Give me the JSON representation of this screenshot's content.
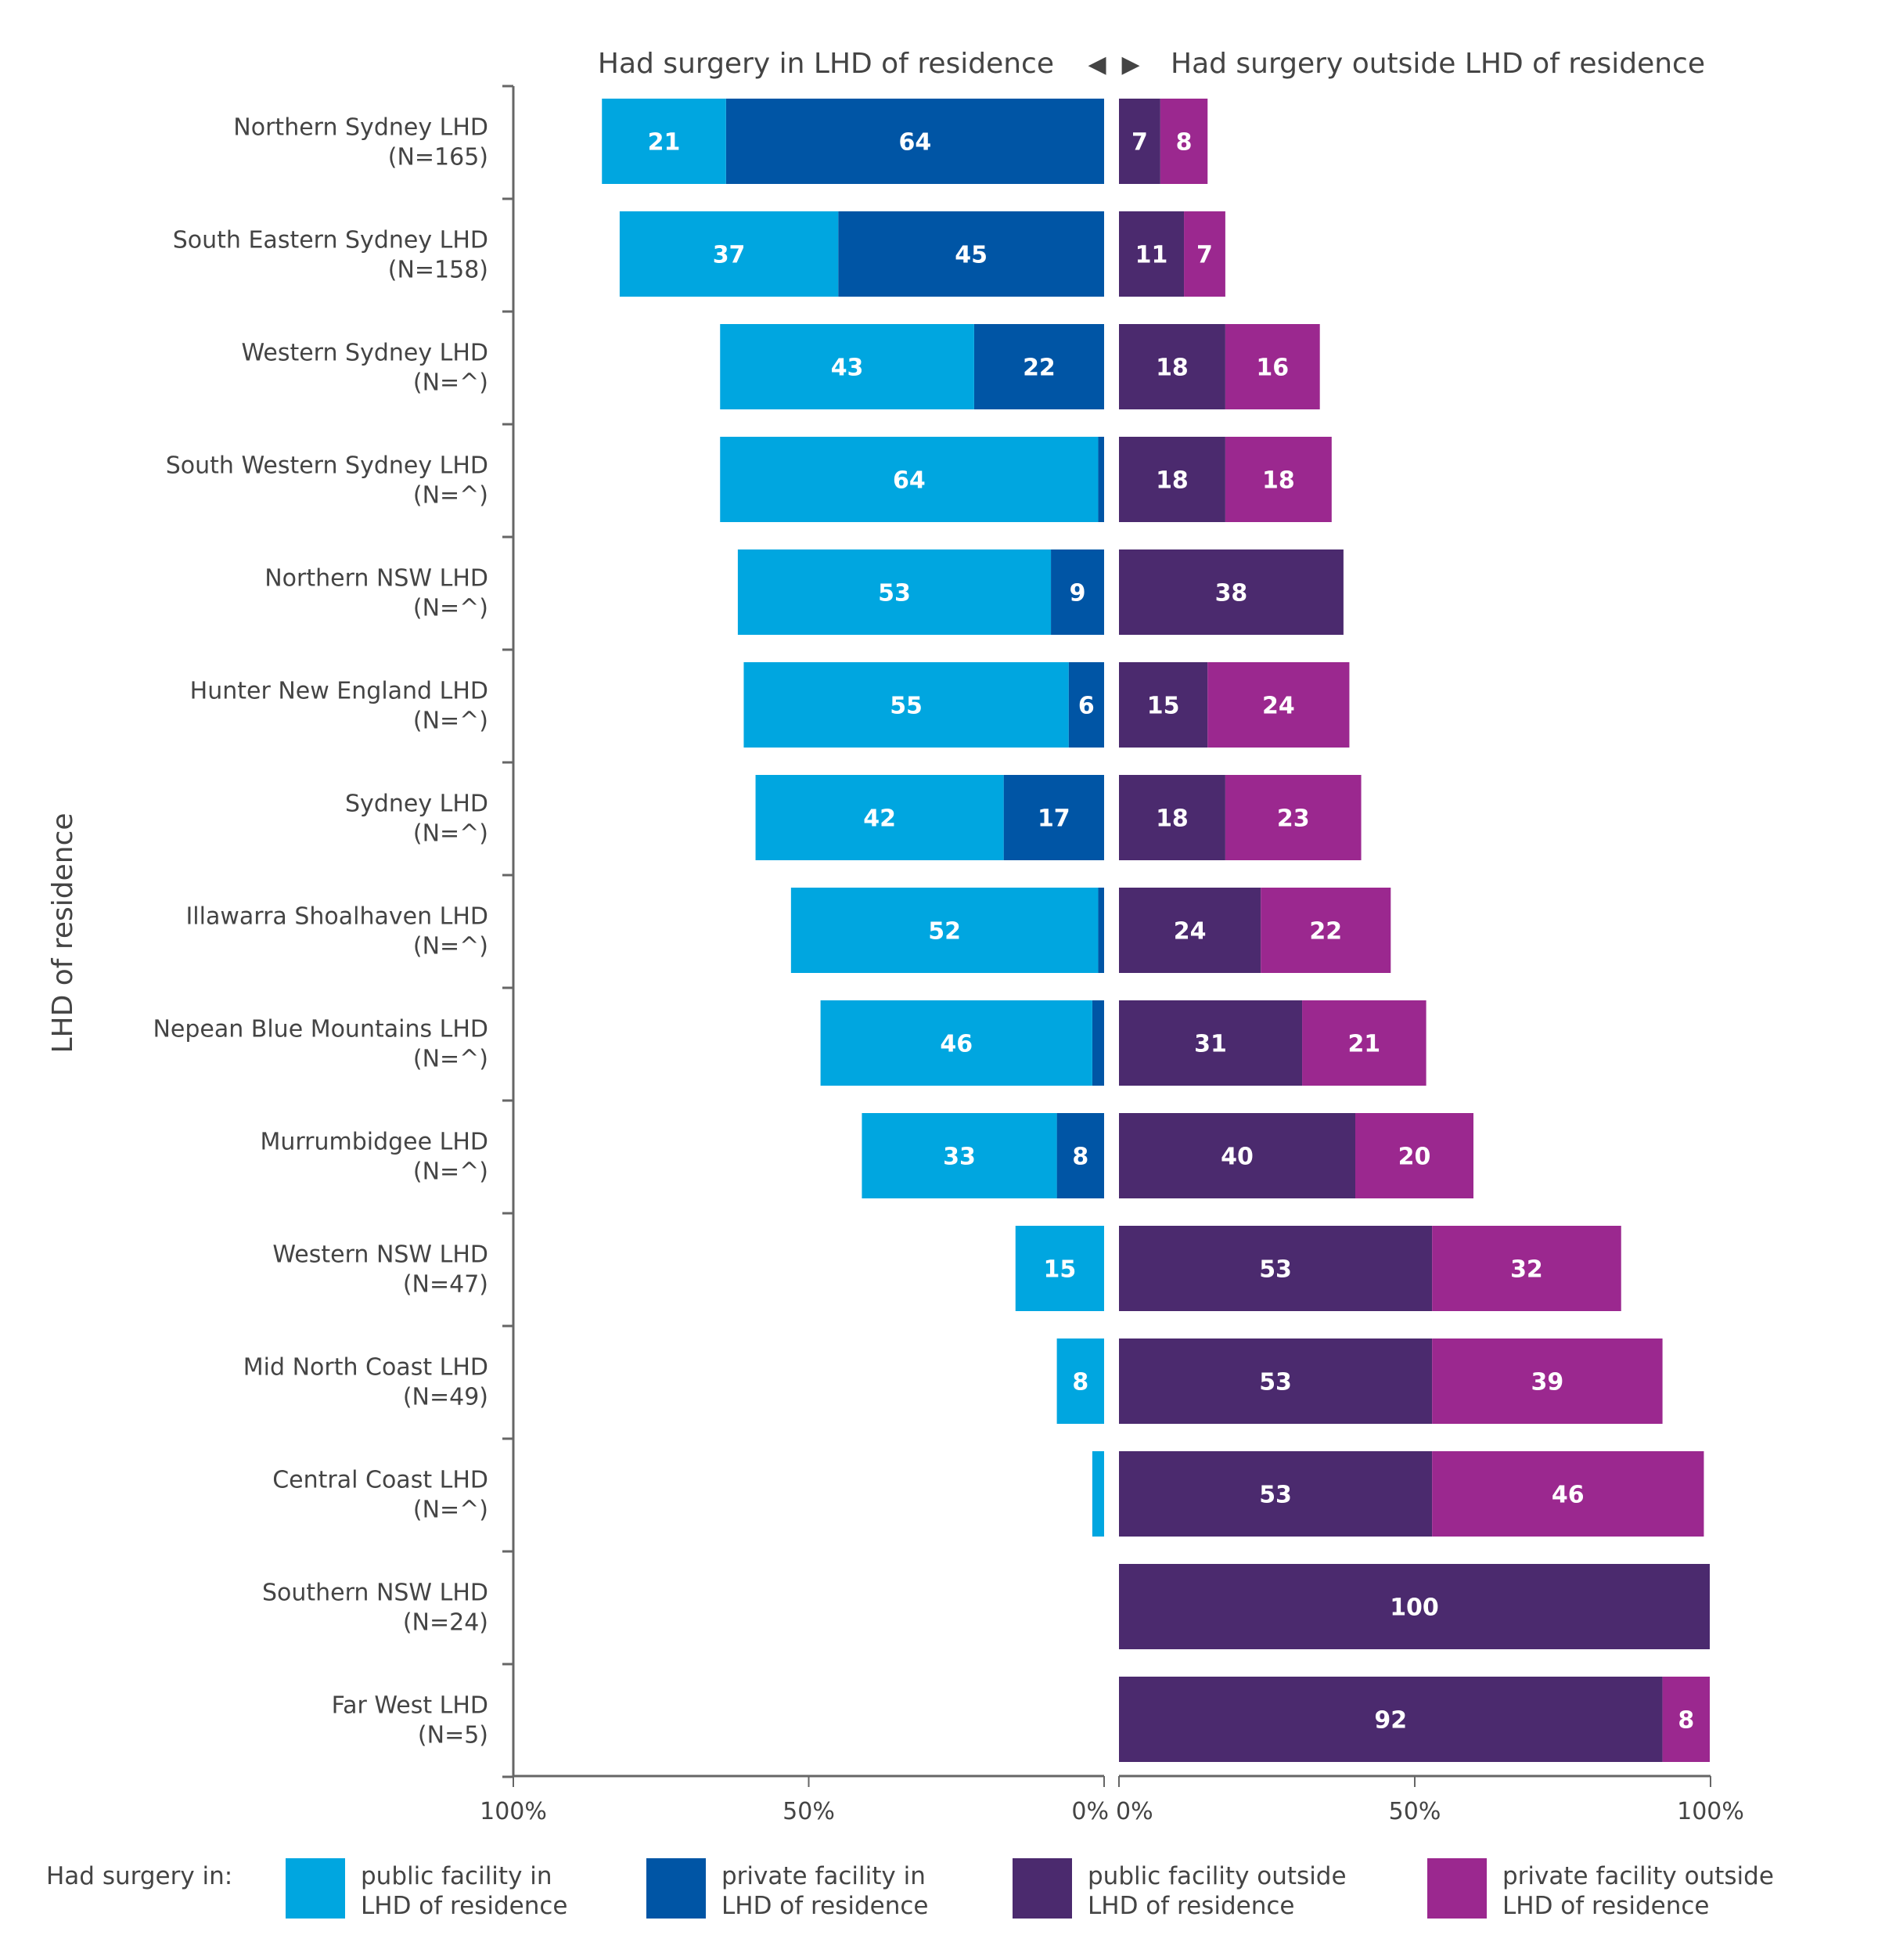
{
  "chart_data": {
    "type": "bar",
    "orientation": "horizontal",
    "layout": "diverging-stacked",
    "header_left": "Had surgery in LHD of residence",
    "header_right": "Had surgery outside LHD of residence",
    "arrow_left": "◀",
    "arrow_right": "▶",
    "ylabel": "LHD of residence",
    "xlim_left": [
      100,
      0
    ],
    "xlim_right": [
      0,
      100
    ],
    "x_tick_labels_left": [
      "100%",
      "50%",
      "0%"
    ],
    "x_tick_labels_right": [
      "0%",
      "50%",
      "100%"
    ],
    "grid": false,
    "categories": [
      {
        "name": "Northern Sydney LHD",
        "n": "(N=165)"
      },
      {
        "name": "South Eastern Sydney LHD",
        "n": "(N=158)"
      },
      {
        "name": "Western Sydney LHD",
        "n": "(N=^)"
      },
      {
        "name": "South Western Sydney LHD",
        "n": "(N=^)"
      },
      {
        "name": "Northern NSW LHD",
        "n": "(N=^)"
      },
      {
        "name": "Hunter New England LHD",
        "n": "(N=^)"
      },
      {
        "name": "Sydney LHD",
        "n": "(N=^)"
      },
      {
        "name": "Illawarra Shoalhaven LHD",
        "n": "(N=^)"
      },
      {
        "name": "Nepean Blue Mountains LHD",
        "n": "(N=^)"
      },
      {
        "name": "Murrumbidgee LHD",
        "n": "(N=^)"
      },
      {
        "name": "Western NSW LHD",
        "n": "(N=47)"
      },
      {
        "name": "Mid North Coast LHD",
        "n": "(N=49)"
      },
      {
        "name": "Central Coast LHD",
        "n": "(N=^)"
      },
      {
        "name": "Southern NSW LHD",
        "n": "(N=24)"
      },
      {
        "name": "Far West LHD",
        "n": "(N=5)"
      }
    ],
    "series": [
      {
        "name": "public facility in LHD of residence",
        "side": "left",
        "color": "#00a6e0",
        "values": [
          21,
          37,
          43,
          64,
          53,
          55,
          42,
          52,
          46,
          33,
          15,
          8,
          2,
          0,
          0
        ]
      },
      {
        "name": "private facility in LHD of residence",
        "side": "left",
        "color": "#0055a5",
        "values": [
          64,
          45,
          22,
          1,
          9,
          6,
          17,
          1,
          2,
          8,
          0,
          0,
          0,
          0,
          0
        ]
      },
      {
        "name": "public facility outside LHD of residence",
        "side": "right",
        "color": "#4b2a6e",
        "values": [
          7,
          11,
          18,
          18,
          38,
          15,
          18,
          24,
          31,
          40,
          53,
          53,
          53,
          100,
          92
        ]
      },
      {
        "name": "private facility outside LHD of residence",
        "side": "right",
        "color": "#9b288f",
        "values": [
          8,
          7,
          16,
          18,
          0,
          24,
          23,
          22,
          21,
          20,
          32,
          39,
          46,
          0,
          8
        ]
      }
    ],
    "legend": {
      "title": "Had surgery in:",
      "placement": "bottom",
      "items": [
        {
          "line1": "public facility in",
          "line2": "LHD of residence",
          "color": "#00a6e0"
        },
        {
          "line1": "private facility in",
          "line2": "LHD of residence",
          "color": "#0055a5"
        },
        {
          "line1": "public facility outside",
          "line2": "LHD of residence",
          "color": "#4b2a6e"
        },
        {
          "line1": "private facility outside",
          "line2": "LHD of residence",
          "color": "#9b288f"
        }
      ]
    }
  }
}
